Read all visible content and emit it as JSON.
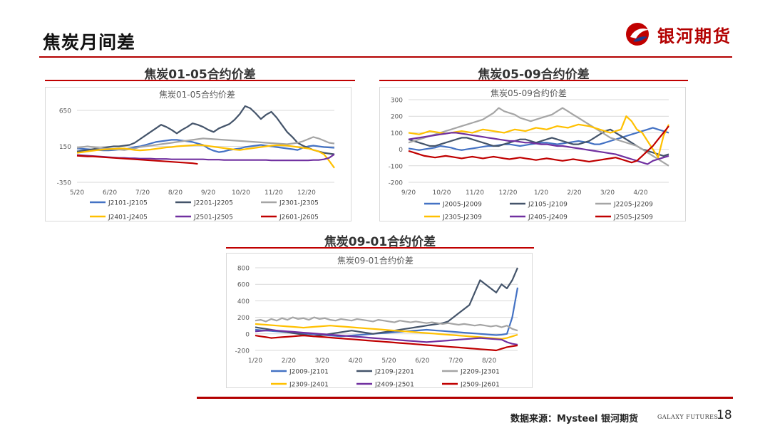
{
  "header": {
    "title": "焦炭月间差",
    "logo_text": "银河期货"
  },
  "footer": {
    "source": "数据来源：Mysteel 银河期货",
    "brand": "GALAXY FUTURES",
    "page_number": "18"
  },
  "colors": {
    "accent": "#b30000",
    "grid": "#d9d9d9",
    "series": [
      "#4472C4",
      "#44546A",
      "#A5A5A5",
      "#FFC000",
      "#7030A0",
      "#C00000"
    ]
  },
  "chart_data": [
    {
      "type": "line",
      "heading": "焦炭01-05合约价差",
      "title": "焦炭01-05合约价差",
      "x_ticks": [
        "5/20",
        "6/20",
        "7/20",
        "8/20",
        "9/20",
        "10/20",
        "11/20",
        "12/20"
      ],
      "y_ticks": [
        "650",
        "150",
        "-350"
      ],
      "ylim": [
        -350,
        650
      ],
      "grid": true,
      "legend_position": "bottom",
      "series": [
        {
          "name": "J2101-J2105",
          "values": [
            120,
            115,
            110,
            105,
            100,
            95,
            95,
            100,
            105,
            110,
            120,
            140,
            150,
            170,
            190,
            210,
            220,
            230,
            240,
            240,
            230,
            220,
            210,
            190,
            170,
            120,
            90,
            70,
            80,
            100,
            110,
            120,
            140,
            150,
            160,
            170,
            160,
            150,
            140,
            130,
            120,
            110,
            100,
            130,
            150,
            160,
            150,
            140,
            135,
            130
          ]
        },
        {
          "name": "J2201-J2205",
          "values": [
            80,
            90,
            100,
            110,
            120,
            130,
            140,
            150,
            150,
            160,
            170,
            200,
            250,
            300,
            350,
            400,
            450,
            420,
            380,
            330,
            380,
            420,
            470,
            450,
            420,
            380,
            350,
            400,
            430,
            460,
            520,
            600,
            720,
            680,
            610,
            530,
            590,
            630,
            550,
            450,
            350,
            280,
            200,
            160,
            130,
            100,
            80,
            60,
            50,
            40
          ]
        },
        {
          "name": "J2301-J2305",
          "values": [
            130,
            140,
            150,
            140,
            130,
            120,
            115,
            110,
            105,
            100,
            110,
            120,
            140,
            150,
            160,
            170,
            180,
            190,
            200,
            210,
            220,
            230,
            240,
            250,
            260,
            255,
            250,
            245,
            240,
            235,
            230,
            225,
            220,
            215,
            210,
            205,
            200,
            195,
            190,
            185,
            180,
            190,
            200,
            220,
            250,
            280,
            260,
            230,
            200,
            190
          ]
        },
        {
          "name": "J2401-J2405",
          "values": [
            60,
            70,
            80,
            90,
            100,
            105,
            110,
            115,
            120,
            120,
            110,
            100,
            95,
            100,
            105,
            115,
            125,
            135,
            140,
            150,
            155,
            160,
            165,
            170,
            165,
            155,
            145,
            135,
            125,
            115,
            105,
            100,
            110,
            120,
            130,
            140,
            150,
            160,
            165,
            165,
            160,
            150,
            140,
            130,
            120,
            100,
            80,
            40,
            -50,
            -150
          ]
        },
        {
          "name": "J2501-J2505",
          "values": [
            30,
            25,
            20,
            15,
            10,
            5,
            0,
            -5,
            -10,
            -10,
            -15,
            -15,
            -20,
            -20,
            -20,
            -25,
            -25,
            -25,
            -30,
            -30,
            -30,
            -30,
            -30,
            -30,
            -30,
            -35,
            -35,
            -35,
            -40,
            -40,
            -40,
            -40,
            -40,
            -40,
            -40,
            -40,
            -40,
            -45,
            -45,
            -45,
            -45,
            -45,
            -45,
            -45,
            -45,
            -40,
            -40,
            -30,
            -10,
            40
          ]
        },
        {
          "name": "J2601-J2605",
          "values": [
            20,
            15,
            10,
            10,
            5,
            0,
            -5,
            -10,
            -15,
            -20,
            -25,
            -30,
            -35,
            -40,
            -45,
            -50,
            -55,
            -60,
            -65,
            -70,
            -75,
            -80,
            -85,
            -95
          ]
        }
      ]
    },
    {
      "type": "line",
      "heading": "焦炭05-09合约价差",
      "title": "焦炭05-09合约价差",
      "x_ticks": [
        "9/20",
        "10/20",
        "11/20",
        "12/20",
        "1/20",
        "2/20",
        "3/20",
        "4/20"
      ],
      "y_ticks": [
        "300",
        "200",
        "100",
        "0",
        "-100",
        "-200"
      ],
      "ylim": [
        -200,
        300
      ],
      "grid": true,
      "legend_position": "bottom",
      "series": [
        {
          "name": "J2005-J2009",
          "values": [
            5,
            0,
            -5,
            0,
            5,
            10,
            20,
            15,
            10,
            0,
            -5,
            0,
            5,
            10,
            15,
            20,
            20,
            25,
            30,
            30,
            25,
            20,
            25,
            30,
            35,
            40,
            40,
            35,
            30,
            35,
            40,
            45,
            50,
            45,
            40,
            30,
            30,
            40,
            50,
            60,
            70,
            80,
            90,
            100,
            110,
            120,
            130,
            120,
            110,
            100
          ]
        },
        {
          "name": "J2105-J2109",
          "values": [
            60,
            50,
            40,
            30,
            20,
            20,
            30,
            40,
            50,
            60,
            70,
            70,
            60,
            50,
            40,
            30,
            20,
            20,
            30,
            40,
            50,
            60,
            60,
            50,
            40,
            50,
            60,
            70,
            60,
            50,
            40,
            30,
            30,
            40,
            50,
            70,
            90,
            110,
            120,
            100,
            80,
            60,
            40,
            20,
            0,
            -10,
            -20,
            -30,
            -40,
            -30
          ]
        },
        {
          "name": "J2205-J2209",
          "values": [
            40,
            50,
            60,
            70,
            80,
            90,
            100,
            110,
            120,
            130,
            140,
            150,
            160,
            170,
            180,
            200,
            220,
            250,
            230,
            220,
            210,
            190,
            180,
            170,
            180,
            190,
            200,
            210,
            230,
            250,
            230,
            210,
            190,
            170,
            150,
            130,
            110,
            90,
            70,
            60,
            50,
            40,
            30,
            20,
            0,
            -20,
            -40,
            -60,
            -80,
            -100
          ]
        },
        {
          "name": "J2305-J2309",
          "values": [
            100,
            95,
            90,
            100,
            110,
            105,
            100,
            95,
            100,
            105,
            110,
            105,
            100,
            110,
            120,
            115,
            110,
            105,
            100,
            110,
            120,
            115,
            110,
            120,
            130,
            125,
            120,
            130,
            140,
            135,
            130,
            140,
            150,
            145,
            140,
            130,
            120,
            110,
            100,
            110,
            120,
            200,
            170,
            120,
            100,
            50,
            0,
            -50,
            80,
            150
          ]
        },
        {
          "name": "J2405-J2409",
          "values": [
            60,
            65,
            70,
            75,
            80,
            85,
            90,
            95,
            100,
            100,
            95,
            90,
            85,
            80,
            75,
            70,
            65,
            60,
            55,
            50,
            50,
            45,
            40,
            40,
            35,
            30,
            30,
            25,
            20,
            20,
            15,
            10,
            5,
            0,
            -5,
            -10,
            -15,
            -20,
            -25,
            -30,
            -40,
            -50,
            -60,
            -70,
            -80,
            -90,
            -70,
            -60,
            -50,
            -40
          ]
        },
        {
          "name": "J2505-J2509",
          "values": [
            -10,
            -20,
            -30,
            -40,
            -45,
            -50,
            -45,
            -40,
            -45,
            -50,
            -55,
            -50,
            -45,
            -50,
            -55,
            -50,
            -45,
            -50,
            -55,
            -60,
            -55,
            -50,
            -55,
            -60,
            -65,
            -60,
            -55,
            -60,
            -65,
            -70,
            -65,
            -60,
            -65,
            -70,
            -75,
            -70,
            -65,
            -60,
            -55,
            -50,
            -60,
            -70,
            -80,
            -70,
            -40,
            -10,
            20,
            60,
            100,
            140
          ]
        }
      ]
    },
    {
      "type": "line",
      "heading": "焦炭09-01合约价差",
      "title": "焦炭09-01合约价差",
      "x_ticks": [
        "1/20",
        "2/20",
        "3/20",
        "4/20",
        "5/20",
        "6/20",
        "7/20",
        "8/20"
      ],
      "y_ticks": [
        "800",
        "600",
        "400",
        "200",
        "0",
        "-200"
      ],
      "ylim": [
        -200,
        800
      ],
      "grid": true,
      "legend_position": "bottom",
      "series": [
        {
          "name": "J2009-J2101",
          "values": [
            50,
            45,
            40,
            35,
            30,
            25,
            20,
            15,
            10,
            5,
            0,
            -5,
            -10,
            -15,
            -20,
            -25,
            -30,
            -25,
            -20,
            -15,
            -10,
            -5,
            0,
            5,
            10,
            15,
            20,
            25,
            30,
            35,
            40,
            45,
            50,
            45,
            40,
            35,
            30,
            25,
            20,
            15,
            10,
            5,
            0,
            -5,
            -10,
            -15,
            -10,
            0,
            200,
            560
          ]
        },
        {
          "name": "J2109-J2201",
          "values": [
            80,
            70,
            60,
            50,
            40,
            30,
            20,
            10,
            0,
            -10,
            -20,
            -30,
            -20,
            -10,
            0,
            10,
            20,
            30,
            40,
            30,
            20,
            10,
            0,
            10,
            20,
            30,
            40,
            50,
            60,
            70,
            80,
            90,
            100,
            110,
            120,
            130,
            150,
            200,
            250,
            300,
            350,
            500,
            650,
            600,
            550,
            500,
            600,
            550,
            650,
            800
          ]
        },
        {
          "name": "J2209-J2301",
          "values": [
            160,
            170,
            150,
            180,
            160,
            190,
            170,
            200,
            180,
            190,
            170,
            200,
            180,
            190,
            170,
            160,
            180,
            170,
            160,
            180,
            170,
            160,
            150,
            170,
            160,
            150,
            140,
            160,
            150,
            140,
            150,
            140,
            130,
            140,
            130,
            120,
            130,
            120,
            110,
            120,
            110,
            100,
            110,
            100,
            90,
            100,
            80,
            100,
            60,
            40
          ]
        },
        {
          "name": "J2309-J2401",
          "values": [
            120,
            115,
            110,
            105,
            100,
            95,
            90,
            85,
            80,
            75,
            80,
            85,
            90,
            95,
            100,
            95,
            90,
            85,
            80,
            75,
            70,
            65,
            60,
            55,
            50,
            45,
            40,
            35,
            30,
            25,
            20,
            15,
            10,
            5,
            0,
            -5,
            -10,
            -15,
            -20,
            -25,
            -30,
            -35,
            -40,
            -45,
            -50,
            -55,
            -60,
            -50,
            -30,
            -10
          ]
        },
        {
          "name": "J2409-J2501",
          "values": [
            30,
            35,
            40,
            45,
            40,
            35,
            30,
            25,
            20,
            15,
            10,
            5,
            0,
            -5,
            -10,
            -15,
            -20,
            -25,
            -30,
            -35,
            -40,
            -45,
            -50,
            -55,
            -60,
            -65,
            -70,
            -75,
            -80,
            -85,
            -90,
            -95,
            -100,
            -95,
            -90,
            -85,
            -80,
            -75,
            -70,
            -65,
            -60,
            -55,
            -50,
            -55,
            -60,
            -65,
            -70,
            -100,
            -120,
            -130
          ]
        },
        {
          "name": "J2509-J2601",
          "values": [
            -20,
            -30,
            -40,
            -50,
            -45,
            -40,
            -35,
            -30,
            -25,
            -20,
            -25,
            -30,
            -35,
            -40,
            -45,
            -50,
            -55,
            -60,
            -65,
            -70,
            -75,
            -80,
            -85,
            -90,
            -95,
            -100,
            -105,
            -110,
            -115,
            -120,
            -125,
            -130,
            -135,
            -140,
            -145,
            -150,
            -155,
            -160,
            -165,
            -170,
            -175,
            -180,
            -185,
            -190,
            -195,
            -200,
            -180,
            -160,
            -150,
            -140
          ]
        }
      ]
    }
  ]
}
